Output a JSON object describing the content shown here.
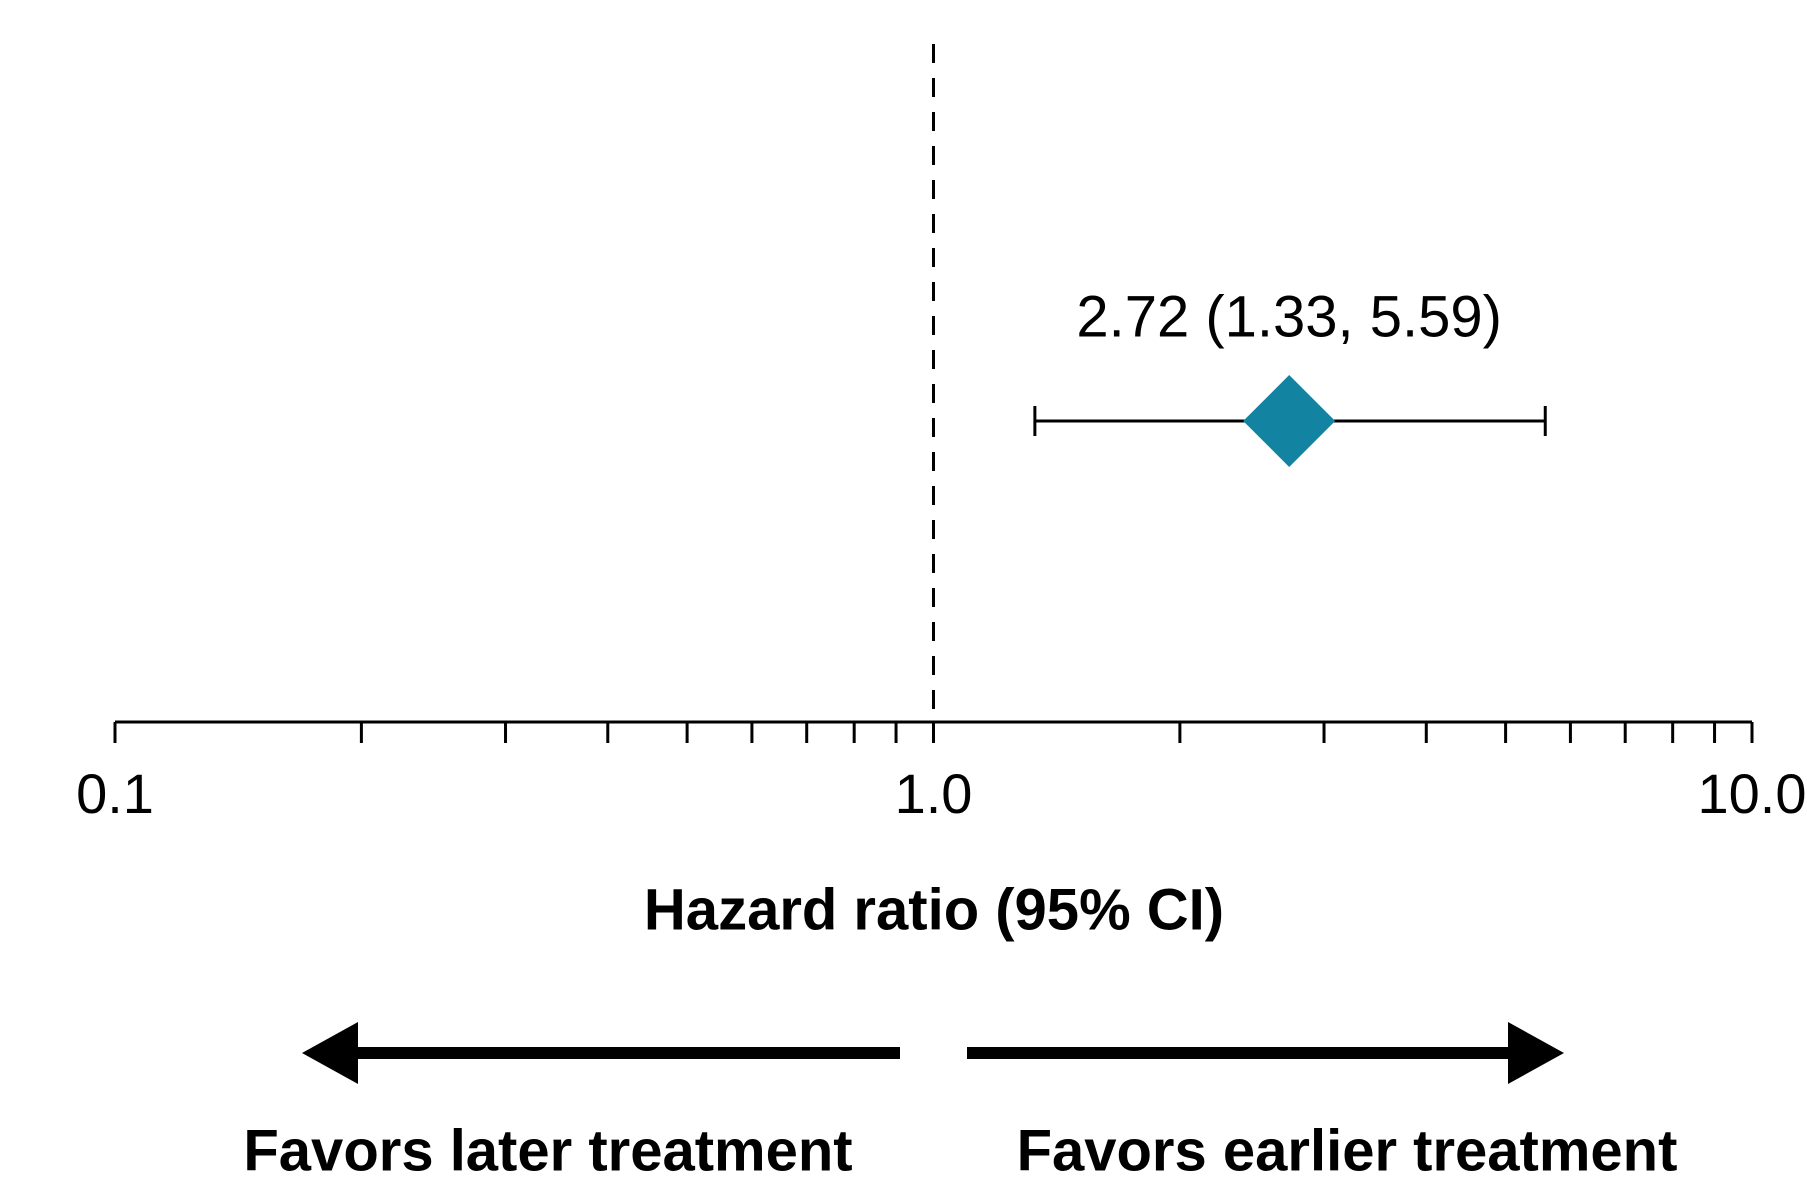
{
  "chart_data": {
    "type": "forest",
    "xlabel": "Hazard ratio (95% CI)",
    "values": [
      2.72
    ],
    "lower": [
      1.33
    ],
    "upper": [
      5.59
    ],
    "value_labels": [
      "2.72 (1.33, 5.59)"
    ],
    "color": "#1283a0",
    "xlim": [
      0.1,
      10
    ],
    "log_x": true,
    "xticks": [
      0.1,
      {
        "value": 1,
        "label": "1.0"
      },
      {
        "value": 10,
        "label": "10.0"
      }
    ],
    "xminorticks": [
      0.2,
      0.3,
      0.4,
      0.5,
      0.6,
      0.7,
      0.8,
      0.9,
      2,
      3,
      4,
      5,
      6,
      7,
      8,
      9
    ],
    "reference_line": 1,
    "annotations": [
      "Favors later treatment",
      "Favors earlier treatment"
    ]
  }
}
